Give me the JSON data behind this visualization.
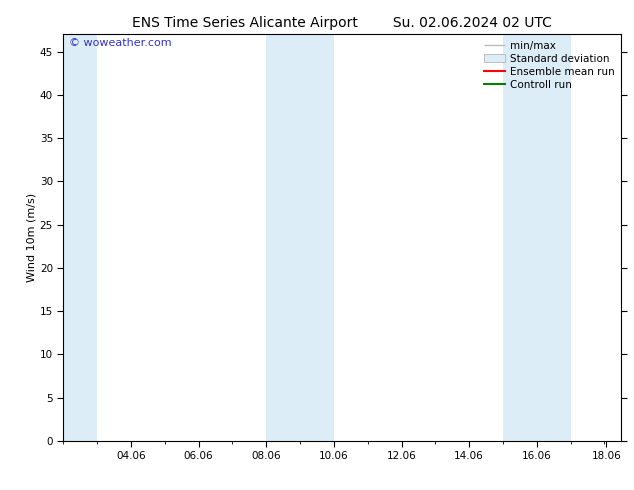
{
  "title_left": "ENS Time Series Alicante Airport",
  "title_right": "Su. 02.06.2024 02 UTC",
  "ylabel": "Wind 10m (m/s)",
  "watermark": "© woweather.com",
  "x_min": 2.0,
  "x_max": 18.5,
  "y_min": 0,
  "y_max": 47,
  "yticks": [
    0,
    5,
    10,
    15,
    20,
    25,
    30,
    35,
    40,
    45
  ],
  "xtick_labels": [
    "04.06",
    "06.06",
    "08.06",
    "10.06",
    "12.06",
    "14.06",
    "16.06",
    "18.06"
  ],
  "xtick_positions": [
    4.0,
    6.0,
    8.0,
    10.0,
    12.0,
    14.0,
    16.0,
    18.06
  ],
  "shaded_bands": [
    {
      "x_start": 2.0,
      "x_end": 3.0
    },
    {
      "x_start": 8.0,
      "x_end": 10.0
    },
    {
      "x_start": 15.0,
      "x_end": 17.0
    }
  ],
  "band_color": "#ddedf8",
  "background_color": "#ffffff",
  "legend_entries": [
    {
      "label": "min/max",
      "color": "#bbbbbb",
      "type": "errorbar"
    },
    {
      "label": "Standard deviation",
      "color": "#ddedf8",
      "type": "fill"
    },
    {
      "label": "Ensemble mean run",
      "color": "#ff0000",
      "type": "line"
    },
    {
      "label": "Controll run",
      "color": "#008000",
      "type": "line"
    }
  ],
  "title_fontsize": 10,
  "axis_fontsize": 8,
  "tick_fontsize": 7.5,
  "legend_fontsize": 7.5,
  "watermark_color": "#3333cc",
  "watermark_fontsize": 8
}
